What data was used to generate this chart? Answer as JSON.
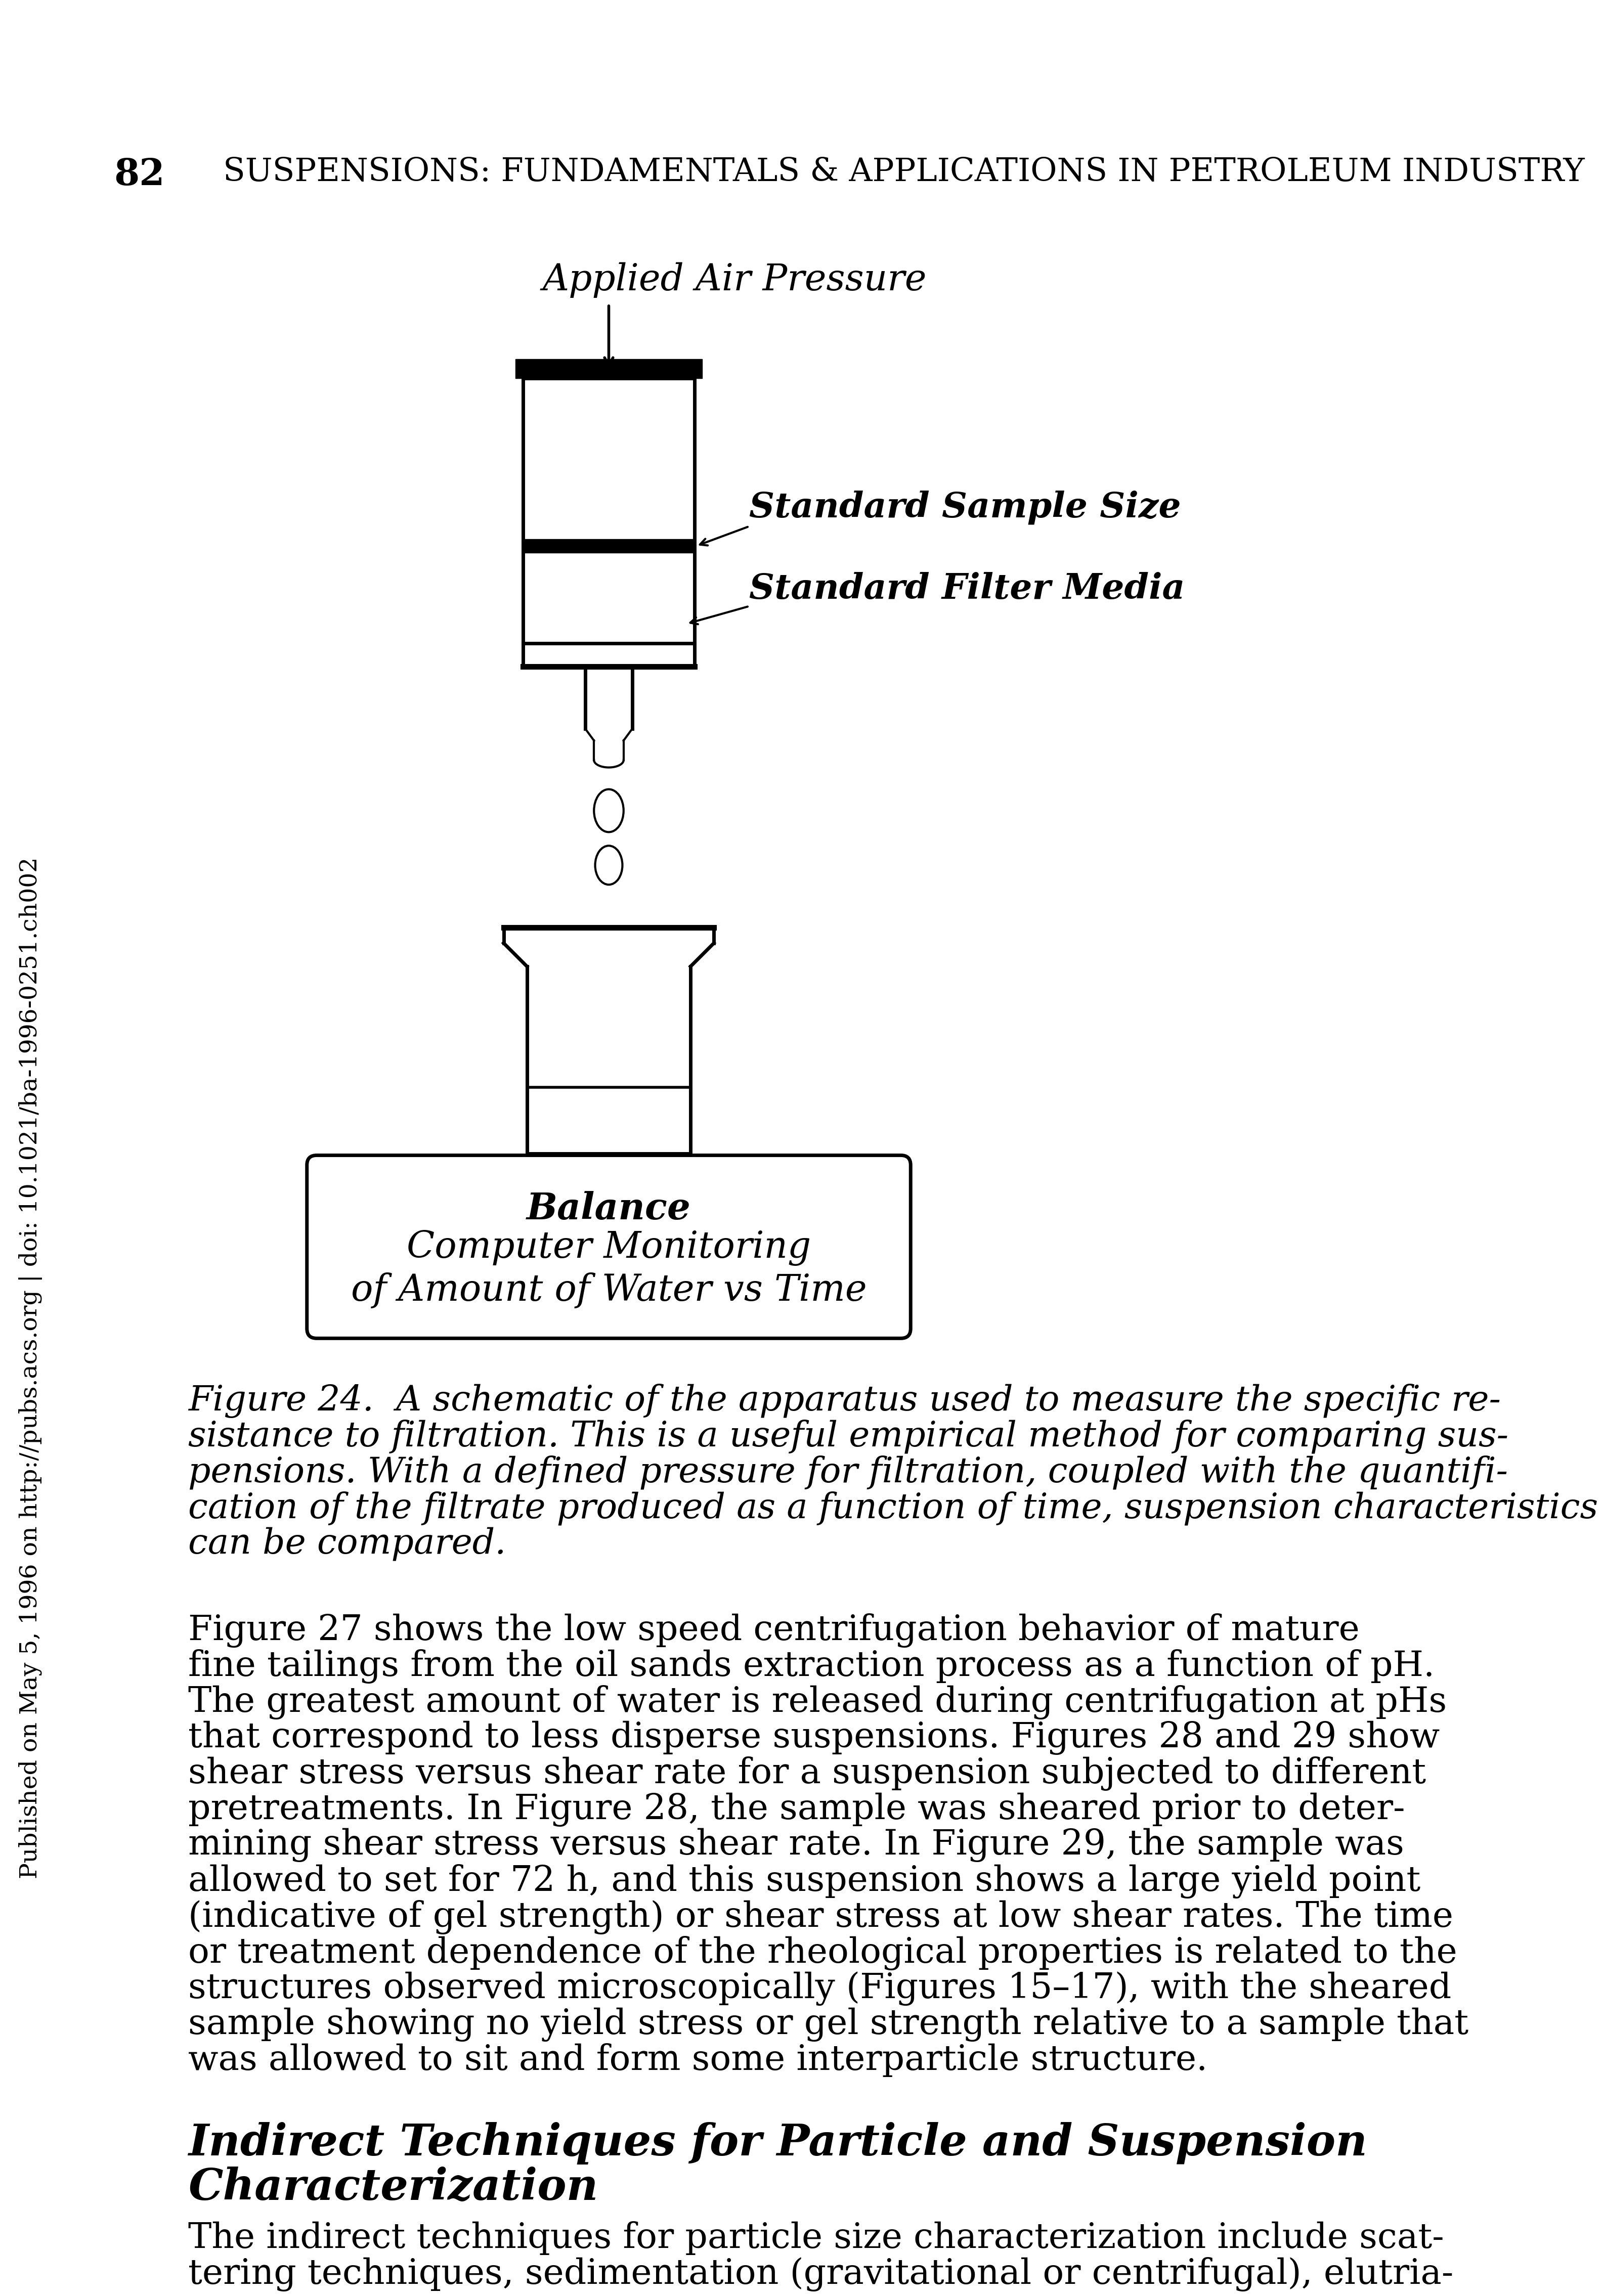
{
  "page_number": "82",
  "header_text": "Suspensions: Fundamentals & Applications in Petroleum Industry",
  "background_color": "#ffffff",
  "text_color": "#000000",
  "label_applied_air_pressure": "Applied Air Pressure",
  "label_standard_sample_size": "Standard Sample Size",
  "label_standard_filter_media": "Standard Filter Media",
  "label_balance": "Balance",
  "label_computer_monitoring": "Computer Monitoring",
  "label_of_amount": "of Amount of Water vs Time",
  "caption_line1": "Figure 24.  A schematic of the apparatus used to measure the specific re-",
  "caption_line2": "sistance to filtration. This is a useful empirical method for comparing sus-",
  "caption_line3": "pensions. With a defined pressure for filtration, coupled with the quantifi-",
  "caption_line4": "cation of the filtrate produced as a function of time, suspension characteristics",
  "caption_line5": "can be compared.",
  "body_text": [
    "Figure 27 shows the low speed centrifugation behavior of mature",
    "fine tailings from the oil sands extraction process as a function of pH.",
    "The greatest amount of water is released during centrifugation at pHs",
    "that correspond to less disperse suspensions. Figures 28 and 29 show",
    "shear stress versus shear rate for a suspension subjected to different",
    "pretreatments. In Figure 28, the sample was sheared prior to deter-",
    "mining shear stress versus shear rate. In Figure 29, the sample was",
    "allowed to set for 72 h, and this suspension shows a large yield point",
    "(indicative of gel strength) or shear stress at low shear rates. The time",
    "or treatment dependence of the rheological properties is related to the",
    "structures observed microscopically (Figures 15–17), with the sheared",
    "sample showing no yield stress or gel strength relative to a sample that",
    "was allowed to sit and form some interparticle structure."
  ],
  "section_title_line1": "Indirect Techniques for Particle and Suspension",
  "section_title_line2": "Characterization",
  "section_body_line1": "The indirect techniques for particle size characterization include scat-",
  "section_body_line2": "tering techniques, sedimentation (gravitational or centrifugal), elutria-",
  "sidebar_text": "Published on May 5, 1996 on http://pubs.acs.org | doi: 10.1021/ba-1996-0251.ch002"
}
